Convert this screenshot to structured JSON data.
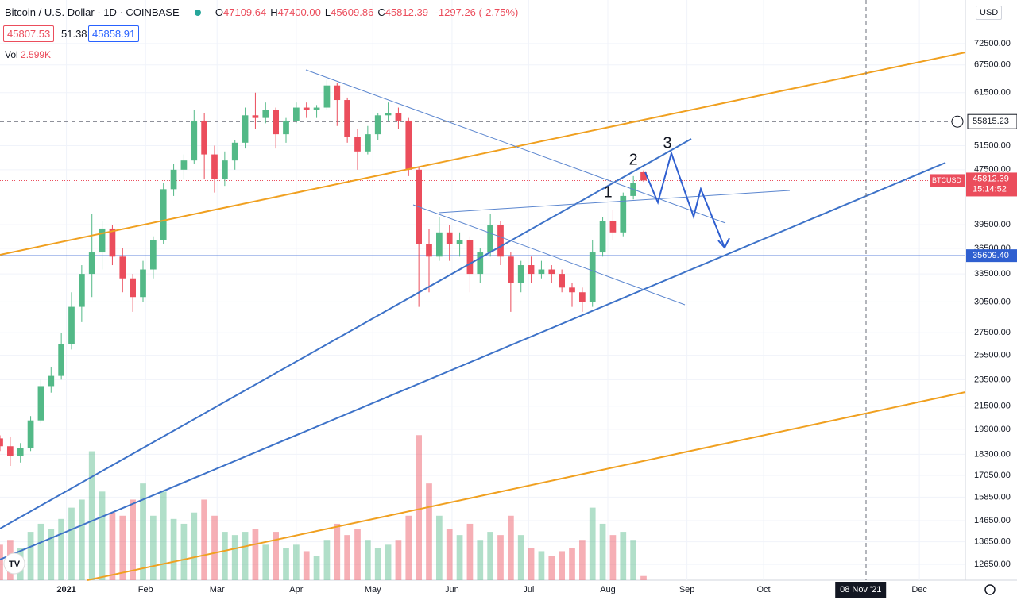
{
  "chart_data": {
    "type": "candlestick",
    "title": "Bitcoin / U.S. Dollar · 1D · COINBASE",
    "ohlc": [
      {
        "label": "O",
        "value": "47109.64"
      },
      {
        "label": "H",
        "value": "47400.00"
      },
      {
        "label": "L",
        "value": "45609.86"
      },
      {
        "label": "C",
        "value": "45812.39"
      }
    ],
    "change": "-1297.26 (-2.75%)",
    "quote_boxes": [
      "45807.53",
      "51.38",
      "45858.91"
    ],
    "volume_label": "Vol",
    "volume_value": "2.599K",
    "currency": "USD",
    "annotations": [
      "1",
      "2",
      "3"
    ],
    "log_scale": true,
    "grid": true,
    "up_color": "#53b987",
    "down_color": "#eb4d5c",
    "x": [
      -26,
      -22,
      -18,
      -14,
      -10,
      -6,
      -2,
      2,
      6,
      10,
      14,
      18,
      22,
      26,
      30,
      34,
      38,
      42,
      46,
      50,
      54,
      58,
      62,
      66,
      70,
      74,
      78,
      82,
      86,
      90,
      94,
      98,
      102,
      106,
      110,
      114,
      118,
      122,
      126,
      130,
      134,
      138,
      142,
      146,
      150,
      154,
      158,
      162,
      166,
      170,
      174,
      178,
      182,
      186,
      190,
      194,
      198,
      202,
      206,
      210,
      214,
      218,
      222,
      226
    ],
    "open": [
      19300,
      18800,
      18200,
      18700,
      20500,
      23000,
      23800,
      26500,
      30000,
      33500,
      36000,
      39000,
      35500,
      33000,
      31000,
      34000,
      37500,
      44500,
      47500,
      49000,
      56000,
      50000,
      46000,
      49000,
      52000,
      57000,
      56500,
      58000,
      53500,
      56000,
      58500,
      58000,
      58500,
      63000,
      60000,
      53000,
      50500,
      53500,
      57000,
      57500,
      56000,
      47500,
      37000,
      35500,
      38500,
      37000,
      37500,
      33500,
      36000,
      39500,
      35500,
      32500,
      34500,
      33500,
      34000,
      33500,
      32000,
      31500,
      30500,
      36000,
      40000,
      38500,
      43500,
      47109.64
    ],
    "high": [
      19500,
      19400,
      19000,
      20800,
      23500,
      24500,
      27500,
      31500,
      34500,
      41000,
      40000,
      39500,
      36500,
      33500,
      35000,
      38000,
      45500,
      48500,
      50000,
      58000,
      57500,
      51500,
      50500,
      52500,
      58500,
      61500,
      59500,
      58500,
      56500,
      59500,
      59500,
      59000,
      64500,
      63500,
      60500,
      54500,
      55000,
      57500,
      59500,
      58500,
      56500,
      48000,
      39000,
      40500,
      39500,
      38500,
      38000,
      36500,
      41000,
      40000,
      36000,
      35000,
      35500,
      35000,
      34500,
      34000,
      32500,
      32000,
      37500,
      40500,
      41500,
      44000,
      46500,
      47400
    ],
    "low": [
      18500,
      17600,
      17800,
      18500,
      20300,
      22500,
      23500,
      26000,
      28500,
      31000,
      34000,
      34500,
      31500,
      29500,
      30500,
      33000,
      37000,
      43500,
      46000,
      48500,
      46000,
      44000,
      45000,
      47500,
      51000,
      54500,
      55500,
      51000,
      52000,
      55500,
      56500,
      56500,
      58000,
      55000,
      52000,
      47500,
      50000,
      52500,
      56000,
      54500,
      46500,
      30000,
      31500,
      35000,
      35000,
      35500,
      31500,
      32500,
      35500,
      34500,
      29500,
      31500,
      32500,
      33000,
      32500,
      31500,
      30000,
      29500,
      30000,
      35500,
      37500,
      38000,
      43000,
      45609.86
    ],
    "close": [
      18800,
      18200,
      18700,
      20500,
      23000,
      23800,
      26500,
      30000,
      33500,
      36000,
      39000,
      35500,
      33000,
      31000,
      34000,
      37500,
      44500,
      47500,
      49000,
      56000,
      50000,
      46000,
      49000,
      52000,
      57000,
      56500,
      58000,
      53500,
      56000,
      58500,
      58000,
      58500,
      63000,
      60000,
      53000,
      50500,
      53500,
      57000,
      57500,
      56000,
      47500,
      37000,
      35500,
      38500,
      37000,
      37500,
      33500,
      36000,
      39500,
      35500,
      32500,
      34500,
      33500,
      34000,
      33500,
      32000,
      31500,
      30500,
      36000,
      40000,
      38500,
      43500,
      45500,
      45812.39
    ],
    "volume": [
      22,
      25,
      20,
      30,
      35,
      32,
      38,
      45,
      50,
      80,
      55,
      42,
      40,
      50,
      60,
      40,
      55,
      38,
      35,
      42,
      50,
      40,
      30,
      28,
      30,
      32,
      22,
      30,
      20,
      22,
      18,
      15,
      25,
      35,
      28,
      32,
      25,
      20,
      22,
      25,
      40,
      90,
      60,
      40,
      32,
      28,
      35,
      25,
      30,
      28,
      40,
      28,
      20,
      18,
      15,
      18,
      20,
      25,
      45,
      35,
      28,
      30,
      25,
      2.599
    ],
    "volume_lim": [
      0,
      360
    ],
    "xlim": [
      -26,
      352
    ],
    "ylim": [
      12000,
      83900
    ],
    "xticks": [
      {
        "value": 0,
        "label": "2021"
      },
      {
        "value": 31,
        "label": "Feb"
      },
      {
        "value": 59,
        "label": "Mar"
      },
      {
        "value": 90,
        "label": "Apr"
      },
      {
        "value": 120,
        "label": "May"
      },
      {
        "value": 151,
        "label": "Jun"
      },
      {
        "value": 181,
        "label": "Jul"
      },
      {
        "value": 212,
        "label": "Aug"
      },
      {
        "value": 243,
        "label": "Sep"
      },
      {
        "value": 273,
        "label": "Oct"
      },
      {
        "value": 334,
        "label": "Dec"
      }
    ],
    "yticks": [
      {
        "value": 12650,
        "label": "12650.00"
      },
      {
        "value": 13650,
        "label": "13650.00"
      },
      {
        "value": 14650,
        "label": "14650.00"
      },
      {
        "value": 15850,
        "label": "15850.00"
      },
      {
        "value": 17050,
        "label": "17050.00"
      },
      {
        "value": 18300,
        "label": "18300.00"
      },
      {
        "value": 19900,
        "label": "19900.00"
      },
      {
        "value": 21500,
        "label": "21500.00"
      },
      {
        "value": 23500,
        "label": "23500.00"
      },
      {
        "value": 25500,
        "label": "25500.00"
      },
      {
        "value": 27500,
        "label": "27500.00"
      },
      {
        "value": 30500,
        "label": "30500.00"
      },
      {
        "value": 33500,
        "label": "33500.00"
      },
      {
        "value": 36500,
        "label": "36500.00"
      },
      {
        "value": 39500,
        "label": "39500.00"
      },
      {
        "value": 47500,
        "label": "47500.00"
      },
      {
        "value": 51500,
        "label": "51500.00"
      },
      {
        "value": 61500,
        "label": "61500.00"
      },
      {
        "value": 67500,
        "label": "67500.00"
      },
      {
        "value": 72500,
        "label": "72500.00"
      }
    ],
    "crosshair": {
      "value": 311,
      "label": "08 Nov '21",
      "price": {
        "value": 55815.23,
        "label": "55815.23"
      }
    },
    "hline": {
      "value": 35609.4,
      "label": "35609.40"
    },
    "last_price": {
      "symbol": "BTCUSD",
      "value": 45812.39,
      "label": "45812.39",
      "countdown": "15:14:52"
    }
  }
}
